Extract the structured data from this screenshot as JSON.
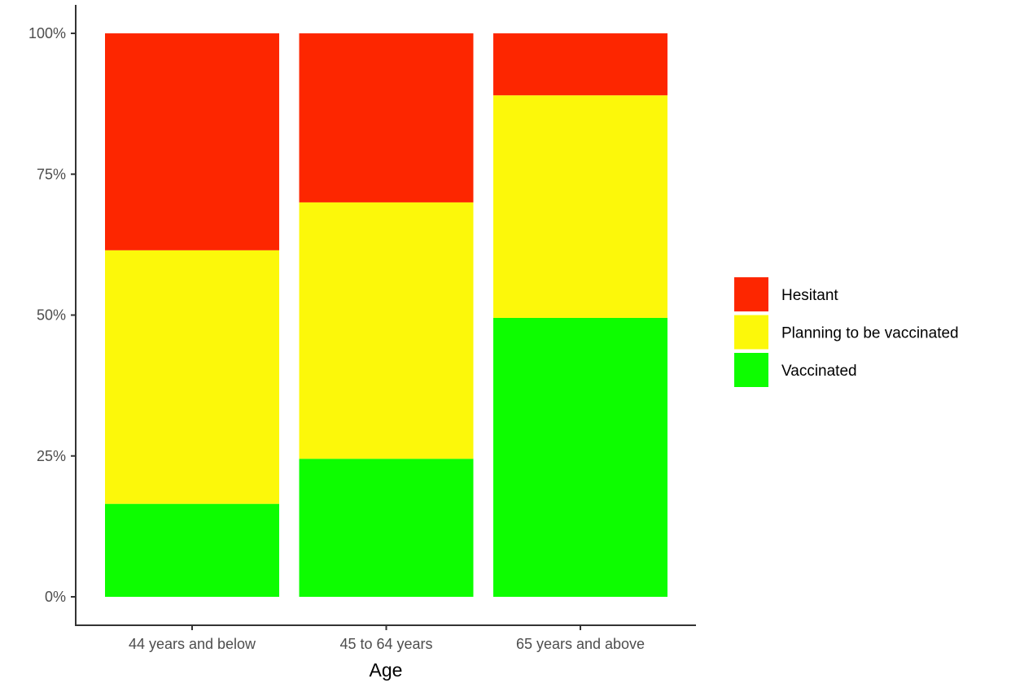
{
  "chart_data": {
    "type": "bar",
    "stacked": true,
    "percent_scale": true,
    "title": "",
    "xlabel": "Age",
    "ylabel": "",
    "ylim": [
      0,
      100
    ],
    "yticks": [
      0,
      25,
      50,
      75,
      100
    ],
    "ytick_labels": [
      "0%",
      "25%",
      "50%",
      "75%",
      "100%"
    ],
    "categories": [
      "44 years and below",
      "45 to 64 years",
      "65 years and above"
    ],
    "series": [
      {
        "name": "Vaccinated",
        "color": "#0dfd00",
        "values": [
          16.5,
          24.5,
          49.5
        ]
      },
      {
        "name": "Planning to be vaccinated",
        "color": "#fcf80a",
        "values": [
          45.0,
          45.5,
          39.5
        ]
      },
      {
        "name": "Hesitant",
        "color": "#fd2600",
        "values": [
          38.5,
          30.0,
          11.0
        ]
      }
    ],
    "legend": {
      "position": "right",
      "order": [
        "Hesitant",
        "Planning to be vaccinated",
        "Vaccinated"
      ]
    },
    "grid": false
  }
}
